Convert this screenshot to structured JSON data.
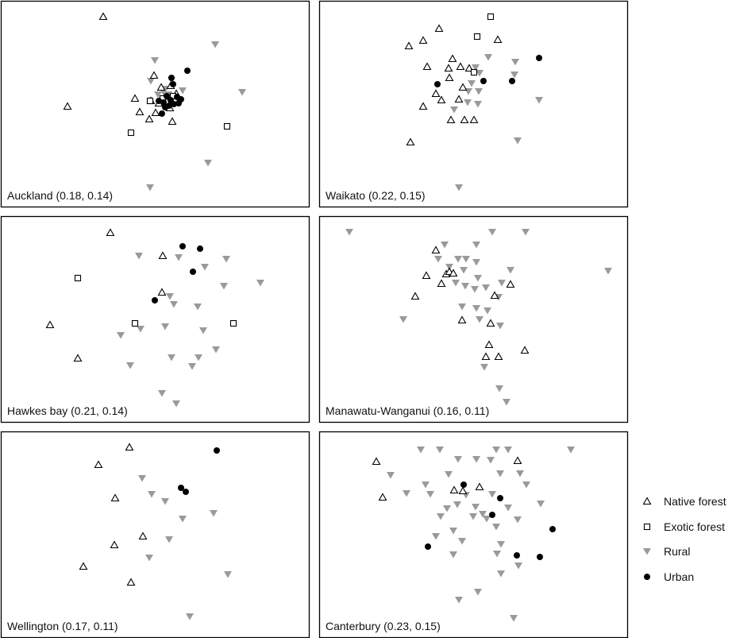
{
  "chart_data": [
    {
      "type": "scatter",
      "title": "Auckland (0.18, 0.14)",
      "series": [
        {
          "name": "Native forest",
          "points": [
            [
              130,
              21
            ],
            [
              85,
              134
            ],
            [
              194,
              95
            ],
            [
              170,
              124
            ],
            [
              176,
              141
            ],
            [
              196,
              142
            ],
            [
              217,
              153
            ],
            [
              188,
              150
            ],
            [
              203,
              110
            ],
            [
              215,
              108
            ],
            [
              190,
              127
            ],
            [
              207,
              124
            ],
            [
              222,
              118
            ],
            [
              210,
              128
            ],
            [
              200,
              130
            ],
            [
              214,
              136
            ]
          ]
        },
        {
          "name": "Exotic forest",
          "points": [
            [
              286,
              159
            ],
            [
              165,
              167
            ],
            [
              189,
              127
            ],
            [
              205,
              124
            ],
            [
              218,
              121
            ]
          ]
        },
        {
          "name": "Rural",
          "points": [
            [
              271,
              56
            ],
            [
              195,
              76
            ],
            [
              190,
              102
            ],
            [
              216,
              101
            ],
            [
              305,
              116
            ],
            [
              262,
              205
            ],
            [
              189,
              236
            ],
            [
              206,
              116
            ],
            [
              212,
              119
            ],
            [
              219,
              121
            ],
            [
              224,
              125
            ],
            [
              208,
              112
            ],
            [
              230,
              114
            ],
            [
              199,
              119
            ]
          ]
        },
        {
          "name": "Urban",
          "points": [
            [
              236,
              89
            ],
            [
              216,
              98
            ],
            [
              218,
              106
            ],
            [
              210,
              121
            ],
            [
              215,
              126
            ],
            [
              223,
              122
            ],
            [
              228,
              125
            ],
            [
              206,
              129
            ],
            [
              213,
              133
            ],
            [
              219,
              131
            ],
            [
              204,
              143
            ],
            [
              200,
              127
            ],
            [
              208,
              135
            ],
            [
              225,
              130
            ]
          ]
        }
      ]
    },
    {
      "type": "scatter",
      "title": "Waikato (0.22, 0.15)",
      "series": [
        {
          "name": "Native forest",
          "points": [
            [
              553,
              36
            ],
            [
              533,
              51
            ],
            [
              515,
              58
            ],
            [
              627,
              50
            ],
            [
              570,
              74
            ],
            [
              538,
              84
            ],
            [
              565,
              86
            ],
            [
              580,
              84
            ],
            [
              591,
              86
            ],
            [
              566,
              98
            ],
            [
              583,
              110
            ],
            [
              549,
              118
            ],
            [
              556,
              126
            ],
            [
              578,
              125
            ],
            [
              533,
              134
            ],
            [
              568,
              151
            ],
            [
              585,
              151
            ],
            [
              597,
              151
            ],
            [
              517,
              179
            ]
          ]
        },
        {
          "name": "Exotic forest",
          "points": [
            [
              618,
              21
            ],
            [
              601,
              46
            ],
            [
              597,
              91
            ]
          ]
        },
        {
          "name": "Rural",
          "points": [
            [
              615,
              72
            ],
            [
              649,
              78
            ],
            [
              599,
              85
            ],
            [
              648,
              94
            ],
            [
              604,
              92
            ],
            [
              594,
              105
            ],
            [
              590,
              115
            ],
            [
              603,
              115
            ],
            [
              589,
              129
            ],
            [
              602,
              131
            ],
            [
              679,
              126
            ],
            [
              572,
              138
            ],
            [
              652,
              177
            ],
            [
              578,
              236
            ]
          ]
        },
        {
          "name": "Urban",
          "points": [
            [
              679,
              73
            ],
            [
              551,
              106
            ],
            [
              609,
              102
            ],
            [
              645,
              102
            ]
          ]
        }
      ]
    },
    {
      "type": "scatter",
      "title": "Hawkes bay (0.21, 0.14)",
      "series": [
        {
          "name": "Native forest",
          "points": [
            [
              139,
              293
            ],
            [
              205,
              322
            ],
            [
              204,
              368
            ],
            [
              63,
              409
            ],
            [
              98,
              451
            ]
          ]
        },
        {
          "name": "Exotic forest",
          "points": [
            [
              98,
              350
            ],
            [
              170,
              407
            ],
            [
              294,
              407
            ]
          ]
        },
        {
          "name": "Rural",
          "points": [
            [
              175,
              322
            ],
            [
              225,
              324
            ],
            [
              285,
              326
            ],
            [
              258,
              336
            ],
            [
              328,
              356
            ],
            [
              282,
              360
            ],
            [
              214,
              373
            ],
            [
              219,
              383
            ],
            [
              249,
              386
            ],
            [
              177,
              414
            ],
            [
              208,
              411
            ],
            [
              152,
              422
            ],
            [
              256,
              416
            ],
            [
              272,
              440
            ],
            [
              216,
              450
            ],
            [
              250,
              450
            ],
            [
              242,
              461
            ],
            [
              164,
              460
            ],
            [
              204,
              495
            ],
            [
              222,
              508
            ]
          ]
        },
        {
          "name": "Urban",
          "points": [
            [
              230,
              310
            ],
            [
              252,
              313
            ],
            [
              243,
              342
            ],
            [
              195,
              378
            ]
          ]
        }
      ]
    },
    {
      "type": "scatter",
      "title": "Manawatu-Wanganui (0.16, 0.11)",
      "series": [
        {
          "name": "Native forest",
          "points": [
            [
              549,
              315
            ],
            [
              537,
              347
            ],
            [
              562,
              345
            ],
            [
              566,
              342
            ],
            [
              571,
              344
            ],
            [
              556,
              357
            ],
            [
              643,
              358
            ],
            [
              623,
              372
            ],
            [
              523,
              373
            ],
            [
              582,
              403
            ],
            [
              618,
              407
            ],
            [
              616,
              434
            ],
            [
              661,
              441
            ],
            [
              612,
              449
            ],
            [
              628,
              449
            ]
          ]
        },
        {
          "name": "Rural",
          "points": [
            [
              440,
              292
            ],
            [
              620,
              292
            ],
            [
              662,
              292
            ],
            [
              560,
              308
            ],
            [
              600,
              308
            ],
            [
              552,
              326
            ],
            [
              577,
              326
            ],
            [
              587,
              326
            ],
            [
              600,
              330
            ],
            [
              566,
              336
            ],
            [
              584,
              340
            ],
            [
              643,
              340
            ],
            [
              602,
              350
            ],
            [
              574,
              356
            ],
            [
              586,
              360
            ],
            [
              598,
              364
            ],
            [
              612,
              362
            ],
            [
              632,
              356
            ],
            [
              628,
              374
            ],
            [
              766,
              341
            ],
            [
              582,
              386
            ],
            [
              600,
              388
            ],
            [
              614,
              391
            ],
            [
              508,
              402
            ],
            [
              604,
              402
            ],
            [
              630,
              410
            ],
            [
              610,
              462
            ],
            [
              629,
              489
            ],
            [
              638,
              506
            ]
          ]
        }
      ]
    },
    {
      "type": "scatter",
      "title": "Wellington (0.17, 0.11)",
      "series": [
        {
          "name": "Native forest",
          "points": [
            [
              163,
              563
            ],
            [
              124,
              585
            ],
            [
              145,
              627
            ],
            [
              180,
              675
            ],
            [
              144,
              686
            ],
            [
              105,
              713
            ],
            [
              165,
              733
            ]
          ]
        },
        {
          "name": "Rural",
          "points": [
            [
              179,
              602
            ],
            [
              191,
              622
            ],
            [
              208,
              631
            ],
            [
              230,
              653
            ],
            [
              269,
              646
            ],
            [
              213,
              679
            ],
            [
              188,
              702
            ],
            [
              287,
              723
            ],
            [
              239,
              776
            ]
          ]
        },
        {
          "name": "Urban",
          "points": [
            [
              273,
              567
            ],
            [
              228,
              614
            ],
            [
              234,
              619
            ]
          ]
        }
      ]
    },
    {
      "type": "scatter",
      "title": "Canterbury (0.23, 0.15)",
      "series": [
        {
          "name": "Native forest",
          "points": [
            [
              474,
              581
            ],
            [
              652,
              580
            ],
            [
              604,
              613
            ],
            [
              572,
              617
            ],
            [
              583,
              618
            ],
            [
              482,
              626
            ]
          ]
        },
        {
          "name": "Rural",
          "points": [
            [
              530,
              566
            ],
            [
              554,
              566
            ],
            [
              625,
              566
            ],
            [
              640,
              566
            ],
            [
              719,
              566
            ],
            [
              577,
              578
            ],
            [
              600,
              578
            ],
            [
              618,
              579
            ],
            [
              492,
              598
            ],
            [
              536,
              610
            ],
            [
              565,
              597
            ],
            [
              630,
              596
            ],
            [
              655,
              596
            ],
            [
              542,
              622
            ],
            [
              587,
              623
            ],
            [
              620,
              622
            ],
            [
              663,
              610
            ],
            [
              576,
              635
            ],
            [
              599,
              638
            ],
            [
              640,
              639
            ],
            [
              681,
              634
            ],
            [
              555,
              650
            ],
            [
              596,
              650
            ],
            [
              608,
              647
            ],
            [
              613,
              653
            ],
            [
              652,
              654
            ],
            [
              571,
              668
            ],
            [
              625,
              663
            ],
            [
              582,
              681
            ],
            [
              631,
              685
            ],
            [
              549,
              675
            ],
            [
              571,
              698
            ],
            [
              626,
              697
            ],
            [
              653,
              712
            ],
            [
              631,
              722
            ],
            [
              602,
              745
            ],
            [
              578,
              755
            ],
            [
              647,
              778
            ],
            [
              512,
              621
            ],
            [
              563,
              640
            ]
          ]
        },
        {
          "name": "Urban",
          "points": [
            [
              584,
              610
            ],
            [
              630,
              627
            ],
            [
              620,
              648
            ],
            [
              696,
              666
            ],
            [
              539,
              688
            ],
            [
              651,
              699
            ],
            [
              680,
              701
            ]
          ]
        }
      ]
    }
  ],
  "legend": {
    "items": [
      {
        "label": "Native forest",
        "marker": "open-triangle-up"
      },
      {
        "label": "Exotic forest",
        "marker": "open-square"
      },
      {
        "label": "Rural",
        "marker": "gray-triangle-down"
      },
      {
        "label": "Urban",
        "marker": "black-circle"
      }
    ]
  },
  "colors": {
    "rural": "#9a9a9a",
    "urban": "#000000",
    "frame": "#000000"
  }
}
